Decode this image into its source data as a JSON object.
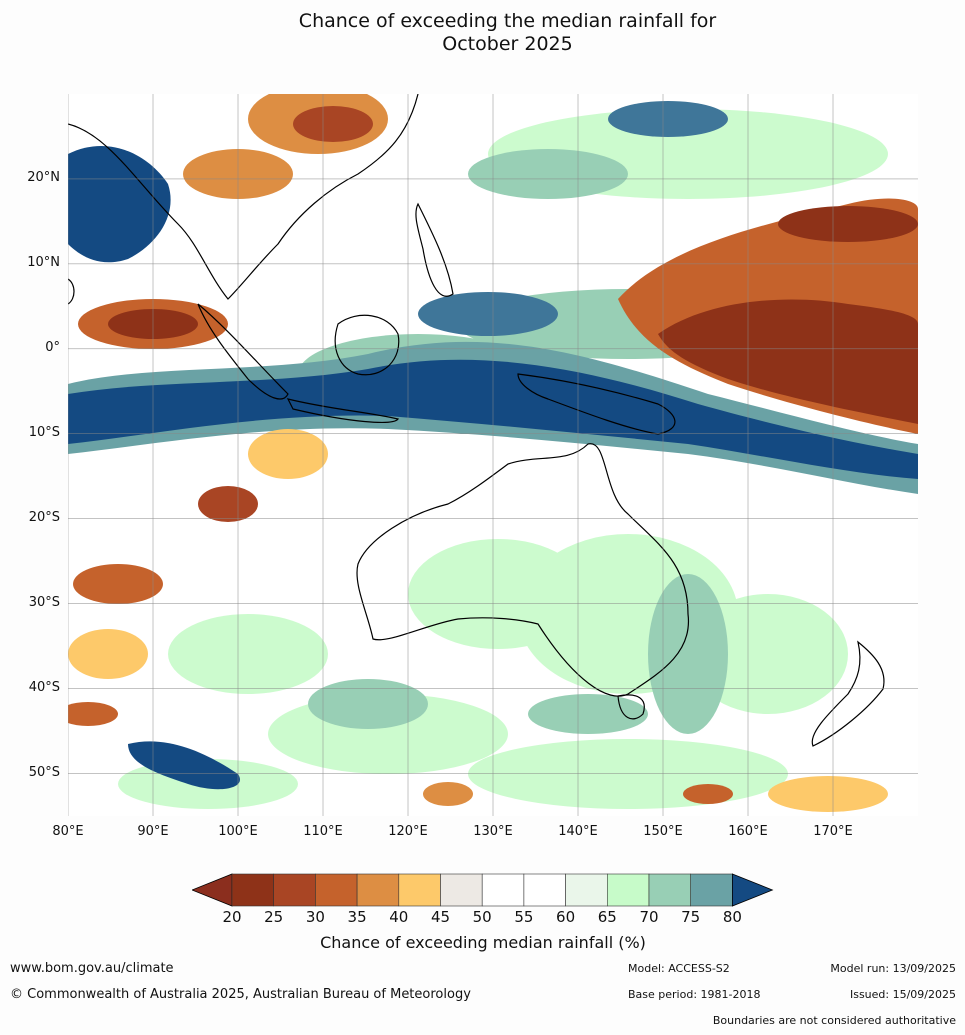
{
  "title_line1": "Chance of exceeding the median rainfall for",
  "title_line2": "October 2025",
  "map": {
    "lat_labels": [
      "20°N",
      "10°N",
      "0°",
      "10°S",
      "20°S",
      "30°S",
      "40°S",
      "50°S"
    ],
    "lon_labels": [
      "80°E",
      "90°E",
      "100°E",
      "110°E",
      "120°E",
      "130°E",
      "140°E",
      "150°E",
      "160°E",
      "170°E"
    ],
    "lon_range": [
      80,
      180
    ],
    "lat_range": [
      -55,
      30
    ],
    "grid": true
  },
  "colorbar": {
    "levels": [
      "20",
      "25",
      "30",
      "35",
      "40",
      "45",
      "50",
      "55",
      "60",
      "65",
      "70",
      "75",
      "80"
    ],
    "colors": [
      "#8e3218",
      "#a94524",
      "#c5622c",
      "#dd8e43",
      "#fdc96a",
      "#ede9e4",
      "#ffffff",
      "#ffffff",
      "#eaf6ea",
      "#c7fbc9",
      "#98cfb5",
      "#6aa2a5",
      "#3f7699"
    ],
    "under_color": "#8b2e1e",
    "over_color": "#144a82",
    "title": "Chance of exceeding median rainfall (%)"
  },
  "footer": {
    "website": "www.bom.gov.au/climate",
    "copyright": "© Commonwealth of Australia 2025, Australian Bureau of Meteorology",
    "model": "Model: ACCESS-S2",
    "base_period": "Base period: 1981-2018",
    "model_run": "Model run: 13/09/2025",
    "issued": "Issued: 15/09/2025",
    "disclaimer": "Boundaries are not considered authoritative"
  }
}
